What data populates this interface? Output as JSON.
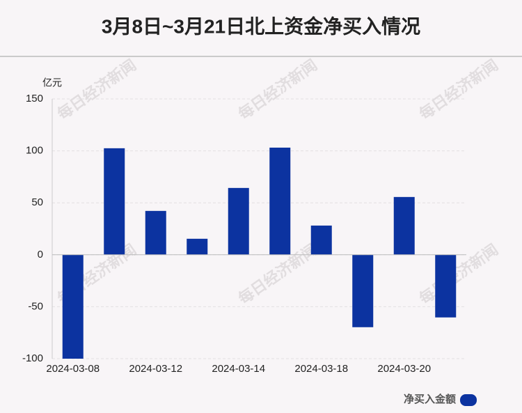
{
  "chart_data": {
    "type": "bar",
    "title": "3月8日~3月21日北上资金净买入情况",
    "y_label": "亿元",
    "watermark": "每日经济新闻",
    "categories": [
      "2024-03-08",
      null,
      "2024-03-12",
      null,
      "2024-03-14",
      null,
      "2024-03-18",
      null,
      "2024-03-20",
      null
    ],
    "series": [
      {
        "name": "净买入金额",
        "color": "#0c33a0",
        "values": [
          -100,
          102.5,
          42.2,
          15.4,
          64.3,
          103.1,
          28.1,
          -69.7,
          55.6,
          -60.3
        ]
      }
    ],
    "ylim": [
      -100,
      150
    ],
    "yticks": [
      -100,
      -50,
      0,
      50,
      100,
      150
    ],
    "grid": true,
    "legend": "bottom-right"
  }
}
